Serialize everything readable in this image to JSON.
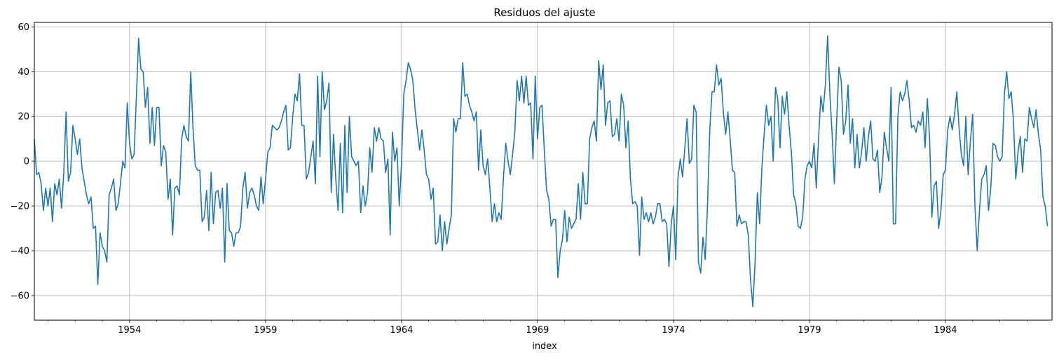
{
  "chart_data": {
    "type": "line",
    "title": "Residuos del ajuste",
    "xlabel": "index",
    "ylabel": "",
    "x_start": "1950-07",
    "x_end": "1987-12",
    "x_frequency": "monthly",
    "xlim": [
      "1950-07",
      "1987-12"
    ],
    "ylim": [
      -71,
      62
    ],
    "x_ticks": [
      {
        "label": "1954",
        "date": "1954-01"
      },
      {
        "label": "1959",
        "date": "1959-01"
      },
      {
        "label": "1964",
        "date": "1964-01"
      },
      {
        "label": "1969",
        "date": "1969-01"
      },
      {
        "label": "1974",
        "date": "1974-01"
      },
      {
        "label": "1979",
        "date": "1979-01"
      },
      {
        "label": "1984",
        "date": "1984-01"
      }
    ],
    "y_ticks": [
      -60,
      -40,
      -20,
      0,
      20,
      40,
      60
    ],
    "grid": true,
    "legend": "none",
    "line_color": "#1f77b4",
    "series": [
      {
        "values": [
          10,
          -6,
          -5,
          -10,
          -22,
          -12,
          -20,
          -12,
          -27,
          -10,
          -15,
          -8,
          -21,
          -5,
          22,
          -9,
          -5,
          16,
          10,
          3,
          10,
          -3,
          -9,
          -15,
          -19,
          -16,
          -30,
          -29,
          -55,
          -32,
          -38,
          -40,
          -45,
          -15,
          -12,
          -8,
          -22,
          -19,
          -10,
          0,
          -3,
          26,
          8,
          1,
          3,
          28,
          55,
          41,
          40,
          24,
          33,
          8,
          24,
          7,
          24,
          24,
          -2,
          7,
          4,
          -17,
          -8,
          -33,
          -12,
          -11,
          -15,
          10,
          16,
          11,
          9,
          40,
          15,
          -2,
          -4,
          -4,
          -27,
          -25,
          -13,
          -31,
          -5,
          -28,
          -14,
          -13,
          -21,
          -12,
          -45,
          -10,
          -31,
          -32,
          -38,
          -32,
          -32,
          -29,
          -12,
          -5,
          -21,
          -14,
          -12,
          -15,
          -20,
          -22,
          -7,
          -19,
          -8,
          4,
          6,
          16,
          15,
          14,
          15,
          18,
          22,
          25,
          5,
          6,
          20,
          30,
          27,
          39,
          16,
          16,
          -8,
          -5,
          2,
          9,
          -10,
          38,
          2,
          40,
          23,
          27,
          35,
          -14,
          12,
          -8,
          -22,
          8,
          -23,
          16,
          -14,
          20,
          2,
          0,
          -2,
          0,
          -23,
          -11,
          -20,
          -14,
          6,
          -5,
          15,
          9,
          15,
          10,
          9,
          -5,
          1,
          -33,
          13,
          0,
          6,
          -20,
          -1,
          30,
          36,
          44,
          41,
          36,
          23,
          14,
          5,
          14,
          5,
          -6,
          -8,
          -17,
          -12,
          -37,
          -36,
          -24,
          -40,
          -27,
          -37,
          -30,
          -24,
          19,
          13,
          19,
          19,
          44,
          29,
          30,
          25,
          22,
          18,
          22,
          -4,
          14,
          -2,
          -6,
          1,
          -12,
          -27,
          -19,
          -27,
          -23,
          -26,
          -7,
          8,
          0,
          -6,
          3,
          13,
          36,
          27,
          38,
          26,
          38,
          25,
          26,
          1,
          38,
          10,
          24,
          25,
          5,
          -13,
          -17,
          -29,
          -26,
          -26,
          -52,
          -40,
          -35,
          -22,
          -36,
          -25,
          -30,
          -28,
          -26,
          -10,
          -26,
          -5,
          -19,
          -19,
          10,
          15,
          18,
          9,
          45,
          32,
          43,
          16,
          26,
          27,
          11,
          12,
          19,
          9,
          30,
          25,
          6,
          18,
          -8,
          -19,
          -18,
          -20,
          -42,
          -16,
          -26,
          -23,
          -27,
          -23,
          -28,
          -25,
          -19,
          -19,
          -27,
          -26,
          -28,
          -47,
          -28,
          -20,
          -44,
          -7,
          1,
          -7,
          6,
          19,
          -1,
          1,
          25,
          22,
          -45,
          -50,
          -34,
          -44,
          -20,
          14,
          31,
          31,
          43,
          34,
          37,
          22,
          12,
          22,
          10,
          -4,
          -5,
          -29,
          -24,
          -28,
          -27,
          -27,
          -33,
          -53,
          -65,
          -45,
          -14,
          -28,
          -3,
          12,
          25,
          16,
          20,
          0,
          33,
          28,
          6,
          29,
          21,
          31,
          16,
          4,
          -15,
          -19,
          -29,
          -30,
          -25,
          -8,
          -2,
          0,
          -3,
          8,
          -12,
          10,
          29,
          22,
          34,
          56,
          30,
          12,
          -10,
          18,
          42,
          36,
          12,
          18,
          34,
          8,
          19,
          -3,
          12,
          -3,
          4,
          15,
          0,
          11,
          18,
          1,
          0,
          5,
          -14,
          -7,
          13,
          6,
          0,
          33,
          -28,
          -28,
          20,
          31,
          27,
          30,
          36,
          27,
          15,
          16,
          13,
          18,
          16,
          22,
          6,
          28,
          10,
          -25,
          -11,
          -9,
          -30,
          -22,
          -6,
          -4,
          14,
          20,
          14,
          21,
          31,
          15,
          3,
          -2,
          20,
          -6,
          9,
          21,
          -20,
          -40,
          -22,
          -8,
          -6,
          -2,
          -22,
          -12,
          8,
          7,
          2,
          0,
          2,
          30,
          40,
          28,
          31,
          18,
          -8,
          4,
          11,
          -5,
          10,
          9,
          24,
          19,
          15,
          23,
          12,
          5,
          -16,
          -20,
          -29
        ]
      }
    ]
  }
}
